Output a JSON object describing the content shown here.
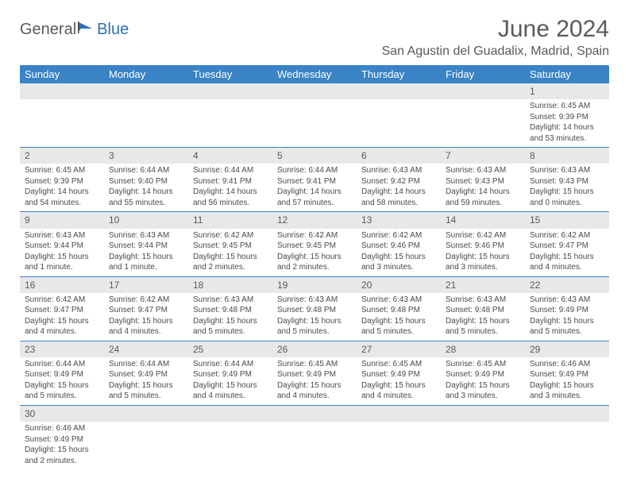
{
  "logo": {
    "text1": "General",
    "text2": "Blue"
  },
  "title": "June 2024",
  "location": "San Agustin del Guadalix, Madrid, Spain",
  "colors": {
    "header_bg": "#3983c6",
    "header_text": "#ffffff",
    "daynum_bg": "#e8e8e8",
    "border": "#3983c6",
    "text": "#4a4a4a",
    "title_text": "#5a5a5a",
    "logo_blue": "#2d6fb5"
  },
  "day_headers": [
    "Sunday",
    "Monday",
    "Tuesday",
    "Wednesday",
    "Thursday",
    "Friday",
    "Saturday"
  ],
  "weeks": [
    [
      null,
      null,
      null,
      null,
      null,
      null,
      {
        "n": "1",
        "sr": "6:45 AM",
        "ss": "9:39 PM",
        "dl": "14 hours and 53 minutes."
      }
    ],
    [
      {
        "n": "2",
        "sr": "6:45 AM",
        "ss": "9:39 PM",
        "dl": "14 hours and 54 minutes."
      },
      {
        "n": "3",
        "sr": "6:44 AM",
        "ss": "9:40 PM",
        "dl": "14 hours and 55 minutes."
      },
      {
        "n": "4",
        "sr": "6:44 AM",
        "ss": "9:41 PM",
        "dl": "14 hours and 56 minutes."
      },
      {
        "n": "5",
        "sr": "6:44 AM",
        "ss": "9:41 PM",
        "dl": "14 hours and 57 minutes."
      },
      {
        "n": "6",
        "sr": "6:43 AM",
        "ss": "9:42 PM",
        "dl": "14 hours and 58 minutes."
      },
      {
        "n": "7",
        "sr": "6:43 AM",
        "ss": "9:43 PM",
        "dl": "14 hours and 59 minutes."
      },
      {
        "n": "8",
        "sr": "6:43 AM",
        "ss": "9:43 PM",
        "dl": "15 hours and 0 minutes."
      }
    ],
    [
      {
        "n": "9",
        "sr": "6:43 AM",
        "ss": "9:44 PM",
        "dl": "15 hours and 1 minute."
      },
      {
        "n": "10",
        "sr": "6:43 AM",
        "ss": "9:44 PM",
        "dl": "15 hours and 1 minute."
      },
      {
        "n": "11",
        "sr": "6:42 AM",
        "ss": "9:45 PM",
        "dl": "15 hours and 2 minutes."
      },
      {
        "n": "12",
        "sr": "6:42 AM",
        "ss": "9:45 PM",
        "dl": "15 hours and 2 minutes."
      },
      {
        "n": "13",
        "sr": "6:42 AM",
        "ss": "9:46 PM",
        "dl": "15 hours and 3 minutes."
      },
      {
        "n": "14",
        "sr": "6:42 AM",
        "ss": "9:46 PM",
        "dl": "15 hours and 3 minutes."
      },
      {
        "n": "15",
        "sr": "6:42 AM",
        "ss": "9:47 PM",
        "dl": "15 hours and 4 minutes."
      }
    ],
    [
      {
        "n": "16",
        "sr": "6:42 AM",
        "ss": "9:47 PM",
        "dl": "15 hours and 4 minutes."
      },
      {
        "n": "17",
        "sr": "6:42 AM",
        "ss": "9:47 PM",
        "dl": "15 hours and 4 minutes."
      },
      {
        "n": "18",
        "sr": "6:43 AM",
        "ss": "9:48 PM",
        "dl": "15 hours and 5 minutes."
      },
      {
        "n": "19",
        "sr": "6:43 AM",
        "ss": "9:48 PM",
        "dl": "15 hours and 5 minutes."
      },
      {
        "n": "20",
        "sr": "6:43 AM",
        "ss": "9:48 PM",
        "dl": "15 hours and 5 minutes."
      },
      {
        "n": "21",
        "sr": "6:43 AM",
        "ss": "9:48 PM",
        "dl": "15 hours and 5 minutes."
      },
      {
        "n": "22",
        "sr": "6:43 AM",
        "ss": "9:49 PM",
        "dl": "15 hours and 5 minutes."
      }
    ],
    [
      {
        "n": "23",
        "sr": "6:44 AM",
        "ss": "9:49 PM",
        "dl": "15 hours and 5 minutes."
      },
      {
        "n": "24",
        "sr": "6:44 AM",
        "ss": "9:49 PM",
        "dl": "15 hours and 5 minutes."
      },
      {
        "n": "25",
        "sr": "6:44 AM",
        "ss": "9:49 PM",
        "dl": "15 hours and 4 minutes."
      },
      {
        "n": "26",
        "sr": "6:45 AM",
        "ss": "9:49 PM",
        "dl": "15 hours and 4 minutes."
      },
      {
        "n": "27",
        "sr": "6:45 AM",
        "ss": "9:49 PM",
        "dl": "15 hours and 4 minutes."
      },
      {
        "n": "28",
        "sr": "6:45 AM",
        "ss": "9:49 PM",
        "dl": "15 hours and 3 minutes."
      },
      {
        "n": "29",
        "sr": "6:46 AM",
        "ss": "9:49 PM",
        "dl": "15 hours and 3 minutes."
      }
    ],
    [
      {
        "n": "30",
        "sr": "6:46 AM",
        "ss": "9:49 PM",
        "dl": "15 hours and 2 minutes."
      },
      null,
      null,
      null,
      null,
      null,
      null
    ]
  ],
  "labels": {
    "sunrise": "Sunrise:",
    "sunset": "Sunset:",
    "daylight": "Daylight:"
  }
}
